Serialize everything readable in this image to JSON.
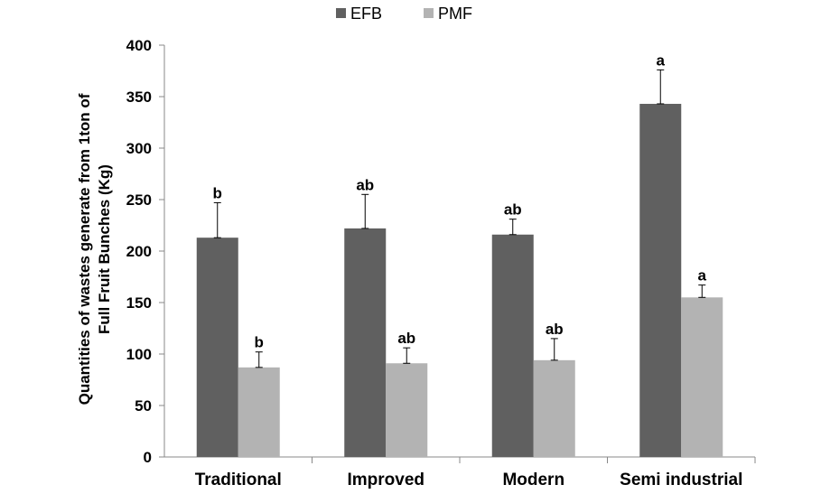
{
  "chart_data": {
    "type": "bar",
    "title": "",
    "xlabel": "",
    "ylabel_lines": [
      "Quantities of wastes generate from 1ton of",
      "Full Fruit Bunches  (Kg)"
    ],
    "ylim": [
      0,
      400
    ],
    "yticks": [
      0,
      50,
      100,
      150,
      200,
      250,
      300,
      350,
      400
    ],
    "grid": false,
    "legend_position": "top-center",
    "categories": [
      "Traditional",
      "Improved",
      "Modern",
      "Semi industrial"
    ],
    "series": [
      {
        "name": "EFB",
        "color": "#606060",
        "values": [
          213,
          222,
          216,
          343
        ],
        "error_upper": [
          34,
          33,
          15,
          33
        ],
        "annotations": [
          "b",
          "ab",
          "ab",
          "a"
        ]
      },
      {
        "name": "PMF",
        "color": "#b3b3b3",
        "values": [
          87,
          91,
          94,
          155
        ],
        "error_upper": [
          15,
          15,
          21,
          12
        ],
        "annotations": [
          "b",
          "ab",
          "ab",
          "a"
        ]
      }
    ]
  }
}
